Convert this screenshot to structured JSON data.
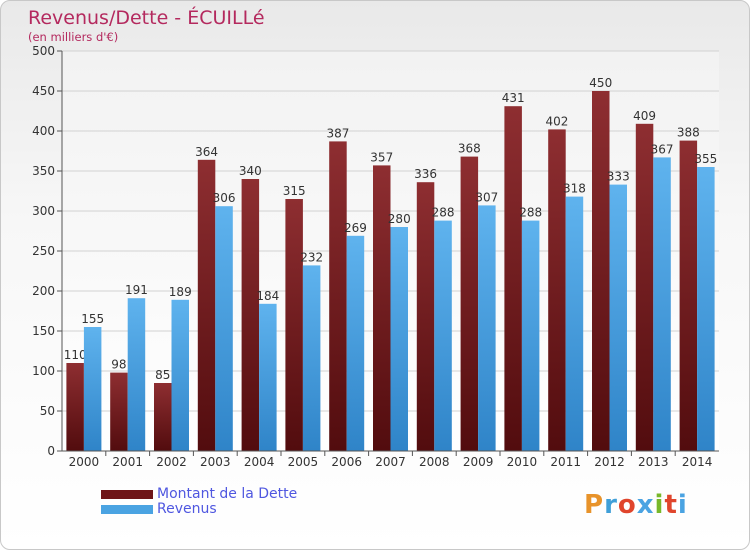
{
  "header": {
    "title": "Revenus/Dette - ÉCUILLé",
    "subtitle": "(en milliers d'€)"
  },
  "chart_data": {
    "type": "bar",
    "title": "Revenus/Dette - ÉCUILLé",
    "subtitle": "(en milliers d'€)",
    "xlabel": "",
    "ylabel": "",
    "ylim": [
      0,
      500
    ],
    "yticks": [
      0,
      50,
      100,
      150,
      200,
      250,
      300,
      350,
      400,
      450,
      500
    ],
    "grid": true,
    "legend_position": "bottom-left",
    "categories": [
      "2000",
      "2001",
      "2002",
      "2003",
      "2004",
      "2005",
      "2006",
      "2007",
      "2008",
      "2009",
      "2010",
      "2011",
      "2012",
      "2013",
      "2014"
    ],
    "series": [
      {
        "name": "Montant de la Dette",
        "color": "#7a1f22",
        "values": [
          110,
          98,
          85,
          364,
          340,
          315,
          387,
          357,
          336,
          368,
          431,
          402,
          450,
          409,
          388
        ]
      },
      {
        "name": "Revenus",
        "color": "#4aa3e2",
        "values": [
          155,
          191,
          189,
          306,
          184,
          232,
          269,
          280,
          288,
          307,
          288,
          318,
          333,
          367,
          355
        ]
      }
    ]
  },
  "legend": [
    {
      "label": "Montant de la Dette",
      "color": "#6e1518"
    },
    {
      "label": "Revenus",
      "color": "#4aa3e2"
    }
  ],
  "logo": {
    "letters": [
      "P",
      "r",
      "o",
      "x",
      "i",
      "t",
      "i"
    ],
    "colors": [
      "#e8932a",
      "#3f9fd8",
      "#e0452c",
      "#4aa3e2",
      "#78b82a",
      "#e0452c",
      "#4aa3e2"
    ]
  }
}
